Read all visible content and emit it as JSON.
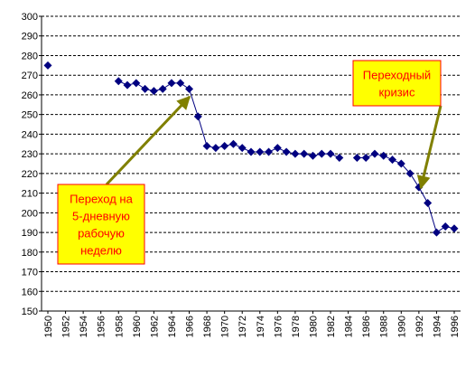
{
  "chart_data": {
    "type": "line",
    "x": [
      1950,
      1951,
      1952,
      1953,
      1954,
      1955,
      1956,
      1957,
      1958,
      1959,
      1960,
      1961,
      1962,
      1963,
      1964,
      1965,
      1966,
      1967,
      1968,
      1969,
      1970,
      1971,
      1972,
      1973,
      1974,
      1975,
      1976,
      1977,
      1978,
      1979,
      1980,
      1981,
      1982,
      1983,
      1984,
      1985,
      1986,
      1987,
      1988,
      1989,
      1990,
      1991,
      1992,
      1993,
      1994,
      1995,
      1996
    ],
    "series": [
      {
        "color": "#000080",
        "values": [
          275,
          null,
          null,
          null,
          null,
          null,
          null,
          null,
          267,
          265,
          266,
          263,
          262,
          263,
          266,
          266,
          263,
          249,
          234,
          233,
          234,
          235,
          233,
          231,
          231,
          231,
          233,
          231,
          230,
          230,
          229,
          230,
          230,
          228,
          null,
          228,
          228,
          230,
          229,
          227,
          225,
          220,
          213,
          205,
          190,
          193,
          192
        ]
      }
    ],
    "xlim": [
      1950,
      1996
    ],
    "xticks": [
      1950,
      1952,
      1954,
      1956,
      1958,
      1960,
      1962,
      1964,
      1966,
      1968,
      1970,
      1972,
      1974,
      1976,
      1978,
      1980,
      1982,
      1984,
      1986,
      1988,
      1990,
      1992,
      1994,
      1996
    ],
    "ylim": [
      150,
      300
    ],
    "yticks": [
      150,
      160,
      170,
      180,
      190,
      200,
      210,
      220,
      230,
      240,
      250,
      260,
      270,
      280,
      290,
      300
    ],
    "grid": true,
    "annotations": [
      {
        "lines": [
          "Переход на",
          "5-дневную",
          "рабочую",
          "неделю"
        ]
      },
      {
        "lines": [
          "Переходный",
          "кризис"
        ]
      }
    ]
  }
}
